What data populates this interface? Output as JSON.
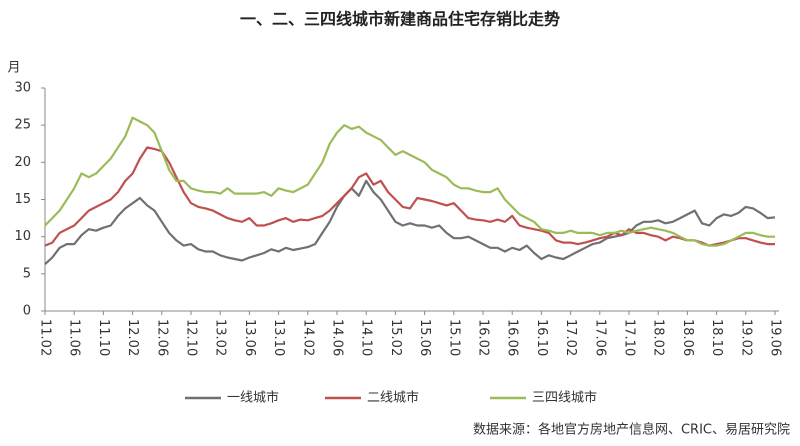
{
  "chart_data": {
    "type": "line",
    "title": "一、二、三四线城市新建商品住宅存销比走势",
    "y_label": "月",
    "source": "数据来源：各地官方房地产信息网、CRIC、易居研究院",
    "categories": [
      "11.02",
      null,
      null,
      null,
      "11.06",
      null,
      null,
      null,
      "11.10",
      null,
      null,
      null,
      "12.02",
      null,
      null,
      null,
      "12.06",
      null,
      null,
      null,
      "12.10",
      null,
      null,
      null,
      "13.02",
      null,
      null,
      null,
      "13.06",
      null,
      null,
      null,
      "13.10",
      null,
      null,
      null,
      "14.02",
      null,
      null,
      null,
      "14.06",
      null,
      null,
      null,
      "14.10",
      null,
      null,
      null,
      "15.02",
      null,
      null,
      null,
      "15.06",
      null,
      null,
      null,
      "15.10",
      null,
      null,
      null,
      "16.02",
      null,
      null,
      null,
      "16.06",
      null,
      null,
      null,
      "16.10",
      null,
      null,
      null,
      "17.02",
      null,
      null,
      null,
      "17.06",
      null,
      null,
      null,
      "17.10",
      null,
      null,
      null,
      "18.02",
      null,
      null,
      null,
      "18.06",
      null,
      null,
      null,
      "18.10",
      null,
      null,
      null,
      "19.02",
      null,
      null,
      null,
      "19.06"
    ],
    "series": [
      {
        "name": "一线城市",
        "color": "#707070",
        "values": [
          6.3,
          7.2,
          8.5,
          9.0,
          9.0,
          10.2,
          11.0,
          10.8,
          11.2,
          11.5,
          12.8,
          13.8,
          14.5,
          15.2,
          14.2,
          13.5,
          12.0,
          10.5,
          9.5,
          8.8,
          9.0,
          8.3,
          8.0,
          8.0,
          7.5,
          7.2,
          7.0,
          6.8,
          7.2,
          7.5,
          7.8,
          8.3,
          8.0,
          8.5,
          8.2,
          8.4,
          8.6,
          9.0,
          10.5,
          12.0,
          14.0,
          15.5,
          16.5,
          15.5,
          17.5,
          16.0,
          15.0,
          13.5,
          12.0,
          11.5,
          11.8,
          11.5,
          11.5,
          11.2,
          11.5,
          10.5,
          9.8,
          9.8,
          10.0,
          9.5,
          9.0,
          8.5,
          8.5,
          8.0,
          8.5,
          8.2,
          8.8,
          7.8,
          7.0,
          7.5,
          7.2,
          7.0,
          7.5,
          8.0,
          8.5,
          9.0,
          9.2,
          9.8,
          10.0,
          10.2,
          10.5,
          11.5,
          12.0,
          12.0,
          12.2,
          11.8,
          12.0,
          12.5,
          13.0,
          13.5,
          11.8,
          11.5,
          12.5,
          13.0,
          12.8,
          13.2,
          14.0,
          13.8,
          13.2,
          12.5,
          12.6
        ]
      },
      {
        "name": "二线城市",
        "color": "#c0504d",
        "values": [
          8.8,
          9.2,
          10.5,
          11.0,
          11.5,
          12.5,
          13.5,
          14.0,
          14.5,
          15.0,
          16.0,
          17.5,
          18.5,
          20.5,
          22.0,
          21.8,
          21.5,
          20.0,
          18.0,
          16.0,
          14.5,
          14.0,
          13.8,
          13.5,
          13.0,
          12.5,
          12.2,
          12.0,
          12.5,
          11.5,
          11.5,
          11.8,
          12.2,
          12.5,
          12.0,
          12.3,
          12.2,
          12.5,
          12.8,
          13.5,
          14.5,
          15.5,
          16.5,
          18.0,
          18.5,
          17.0,
          17.5,
          16.0,
          15.0,
          14.0,
          13.8,
          15.2,
          15.0,
          14.8,
          14.5,
          14.2,
          14.5,
          13.5,
          12.5,
          12.3,
          12.2,
          12.0,
          12.3,
          12.0,
          12.8,
          11.5,
          11.2,
          11.0,
          10.8,
          10.5,
          9.5,
          9.2,
          9.2,
          9.0,
          9.2,
          9.5,
          9.8,
          10.0,
          10.5,
          10.2,
          11.0,
          10.5,
          10.5,
          10.2,
          10.0,
          9.5,
          10.0,
          9.8,
          9.5,
          9.5,
          9.2,
          8.8,
          9.0,
          9.2,
          9.5,
          9.8,
          9.8,
          9.5,
          9.2,
          9.0,
          9.0
        ]
      },
      {
        "name": "三四线城市",
        "color": "#9bbb59",
        "values": [
          11.5,
          12.5,
          13.5,
          15.0,
          16.5,
          18.5,
          18.0,
          18.5,
          19.5,
          20.5,
          22.0,
          23.5,
          26.0,
          25.5,
          25.0,
          24.0,
          21.5,
          19.0,
          17.5,
          17.5,
          16.5,
          16.2,
          16.0,
          16.0,
          15.8,
          16.5,
          15.8,
          15.8,
          15.8,
          15.8,
          16.0,
          15.5,
          16.5,
          16.2,
          16.0,
          16.5,
          17.0,
          18.5,
          20.0,
          22.5,
          24.0,
          25.0,
          24.5,
          24.8,
          24.0,
          23.5,
          23.0,
          22.0,
          21.0,
          21.5,
          21.0,
          20.5,
          20.0,
          19.0,
          18.5,
          18.0,
          17.0,
          16.5,
          16.5,
          16.2,
          16.0,
          16.0,
          16.5,
          15.0,
          14.0,
          13.0,
          12.5,
          12.0,
          11.0,
          10.8,
          10.5,
          10.5,
          10.8,
          10.5,
          10.5,
          10.5,
          10.2,
          10.5,
          10.5,
          10.8,
          10.5,
          10.8,
          11.0,
          11.2,
          11.0,
          10.8,
          10.5,
          10.0,
          9.5,
          9.5,
          9.0,
          8.8,
          8.8,
          9.0,
          9.5,
          10.0,
          10.5,
          10.5,
          10.2,
          10.0,
          10.0
        ]
      }
    ],
    "ylim": [
      0,
      30
    ],
    "yticks": [
      0,
      5,
      10,
      15,
      20,
      25,
      30
    ],
    "grid": false,
    "legend": "bottom"
  }
}
